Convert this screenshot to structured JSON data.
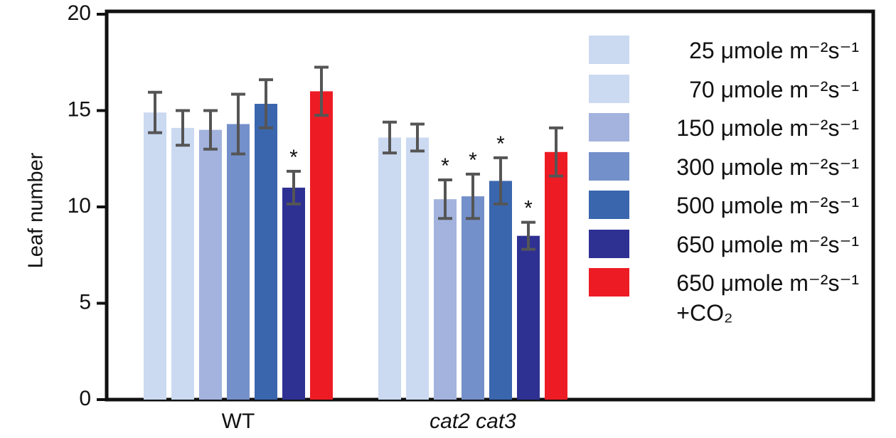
{
  "chart_data": {
    "type": "bar",
    "ylabel": "Leaf number",
    "categories": [
      "WT",
      "cat2 cat3"
    ],
    "ylim": [
      0,
      20
    ],
    "yticks": [
      0,
      5,
      10,
      15,
      20
    ],
    "series": [
      {
        "name": "25 μmole m⁻²s⁻¹",
        "color": "#cbd9f1",
        "values": [
          14.9,
          13.6
        ],
        "errors": [
          1.05,
          0.8
        ],
        "labels": [
          null,
          null
        ]
      },
      {
        "name": "70 μmole m⁻²s⁻¹",
        "color": "#cbd9f1",
        "values": [
          14.1,
          13.6
        ],
        "errors": [
          0.9,
          0.7
        ],
        "labels": [
          null,
          null
        ]
      },
      {
        "name": "150 μmole m⁻²s⁻¹",
        "color": "#a3b3de",
        "values": [
          14.0,
          10.4
        ],
        "errors": [
          1.0,
          1.0
        ],
        "labels": [
          null,
          "*"
        ]
      },
      {
        "name": "300 μmole m⁻²s⁻¹",
        "color": "#7490ca",
        "values": [
          14.3,
          10.55
        ],
        "errors": [
          1.55,
          1.15
        ],
        "labels": [
          null,
          "*"
        ]
      },
      {
        "name": "500 μmole m⁻²s⁻¹",
        "color": "#3a66ae",
        "values": [
          15.35,
          11.35
        ],
        "errors": [
          1.25,
          1.2
        ],
        "labels": [
          null,
          "*"
        ]
      },
      {
        "name": "650 μmole m⁻²s⁻¹",
        "color": "#2e3192",
        "values": [
          11.0,
          8.5
        ],
        "errors": [
          0.85,
          0.7
        ],
        "labels": [
          "*",
          "*"
        ]
      },
      {
        "name": "650 μmole m⁻²s⁻¹\n+CO₂",
        "color": "#ed1c24",
        "values": [
          16.0,
          12.85
        ],
        "errors": [
          1.25,
          1.25
        ],
        "labels": [
          null,
          null
        ]
      }
    ]
  }
}
